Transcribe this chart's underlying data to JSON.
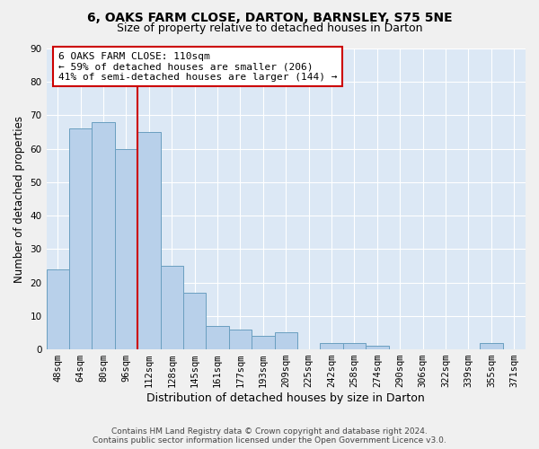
{
  "title1": "6, OAKS FARM CLOSE, DARTON, BARNSLEY, S75 5NE",
  "title2": "Size of property relative to detached houses in Darton",
  "xlabel": "Distribution of detached houses by size in Darton",
  "ylabel": "Number of detached properties",
  "footer1": "Contains HM Land Registry data © Crown copyright and database right 2024.",
  "footer2": "Contains public sector information licensed under the Open Government Licence v3.0.",
  "categories": [
    "48sqm",
    "64sqm",
    "80sqm",
    "96sqm",
    "112sqm",
    "128sqm",
    "145sqm",
    "161sqm",
    "177sqm",
    "193sqm",
    "209sqm",
    "225sqm",
    "242sqm",
    "258sqm",
    "274sqm",
    "290sqm",
    "306sqm",
    "322sqm",
    "339sqm",
    "355sqm",
    "371sqm"
  ],
  "values": [
    24,
    66,
    68,
    60,
    65,
    25,
    17,
    7,
    6,
    4,
    5,
    0,
    2,
    2,
    1,
    0,
    0,
    0,
    0,
    2,
    0
  ],
  "bar_color": "#b8d0ea",
  "bar_edge_color": "#6a9fc0",
  "vline_color": "#cc0000",
  "vline_pos": 3.5,
  "box_edge_color": "#cc0000",
  "ylim": [
    0,
    90
  ],
  "yticks": [
    0,
    10,
    20,
    30,
    40,
    50,
    60,
    70,
    80,
    90
  ],
  "background_color": "#dce8f5",
  "grid_color": "#ffffff",
  "fig_facecolor": "#f0f0f0",
  "title1_fontsize": 10,
  "title2_fontsize": 9,
  "xlabel_fontsize": 9,
  "ylabel_fontsize": 8.5,
  "tick_fontsize": 7.5,
  "annotation_fontsize": 8,
  "footer_fontsize": 6.5,
  "annotation_text": "6 OAKS FARM CLOSE: 110sqm\n← 59% of detached houses are smaller (206)\n41% of semi-detached houses are larger (144) →"
}
